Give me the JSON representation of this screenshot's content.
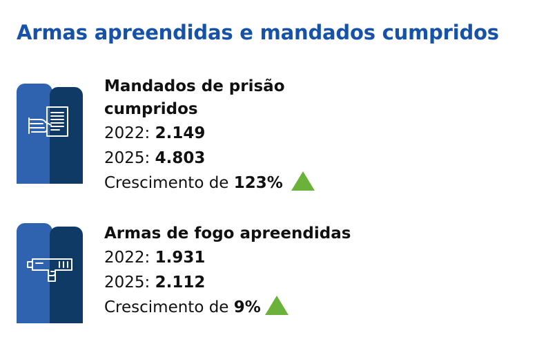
{
  "title": "Armas apreendidas e mandados cumpridos",
  "colors": {
    "title": "#1552a8",
    "tile_light": "#2f63b0",
    "tile_dark": "#0f3a66",
    "growth_up": "#6bb23a"
  },
  "sections": [
    {
      "icon": "document-hand-icon",
      "heading_line1": "Mandados de prisão",
      "heading_line2": "cumpridos",
      "label_2022": "2022:",
      "value_2022": "2.149",
      "label_2025": "2025:",
      "value_2025": "4.803",
      "growth_label": "Crescimento de",
      "growth_value": "123%",
      "trend": "up-triangle-icon"
    },
    {
      "icon": "gun-icon",
      "heading_line1": "Armas de fogo apreendidas",
      "label_2022": "2022:",
      "value_2022": "1.931",
      "label_2025": "2025:",
      "value_2025": "2.112",
      "growth_label": "Crescimento de",
      "growth_value": "9%",
      "trend": "up-triangle-icon"
    }
  ]
}
